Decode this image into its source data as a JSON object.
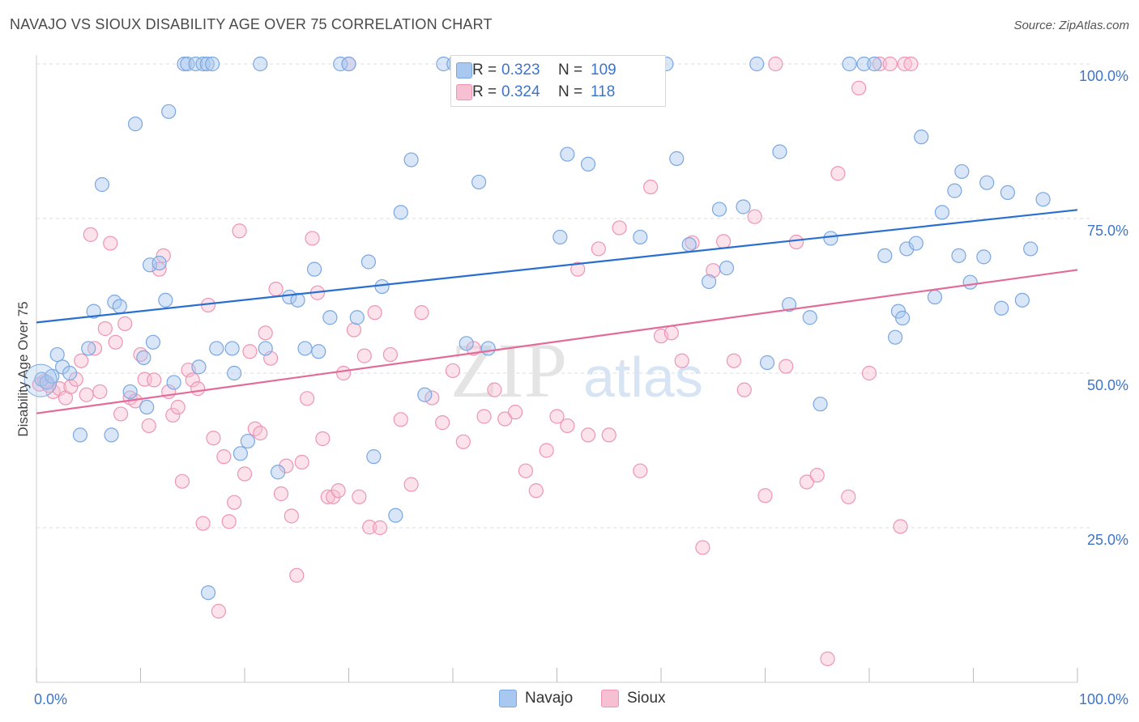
{
  "title": "NAVAJO VS SIOUX DISABILITY AGE OVER 75 CORRELATION CHART",
  "source": "Source: ZipAtlas.com",
  "watermark": {
    "zip": "ZIP",
    "atlas": "atlas"
  },
  "colors": {
    "navajo_fill": "#a9c8ef",
    "navajo_stroke": "#7ba7e0",
    "navajo_line": "#2a6fcf",
    "sioux_fill": "#f6bfd2",
    "sioux_stroke": "#ee95b4",
    "sioux_line": "#e26b98",
    "axis_label": "#3e74c9",
    "grid": "#dddddd"
  },
  "legend": {
    "navajo": {
      "r_label": "R =",
      "r_value": "0.323",
      "n_label": "N =",
      "n_value": "109"
    },
    "sioux": {
      "r_label": "R =",
      "r_value": "0.324",
      "n_label": "N =",
      "n_value": "118"
    }
  },
  "bottom_legend": {
    "navajo": "Navajo",
    "sioux": "Sioux"
  },
  "chart_data": {
    "type": "scatter",
    "title": "NAVAJO VS SIOUX DISABILITY AGE OVER 75 CORRELATION CHART",
    "xlabel": "",
    "ylabel": "Disability Age Over 75",
    "xlim": [
      0,
      100
    ],
    "ylim": [
      0,
      103
    ],
    "x_tick_labels": [
      "0.0%",
      "100.0%"
    ],
    "y_ticks": [
      25,
      50,
      75,
      100
    ],
    "y_tick_labels": [
      "25.0%",
      "50.0%",
      "75.0%",
      "100.0%"
    ],
    "grid": true,
    "legend_position": "top-center",
    "series": [
      {
        "name": "Navajo",
        "trend": {
          "start": [
            0,
            58.2
          ],
          "end": [
            100,
            76.4
          ]
        },
        "points": [
          [
            0.5,
            49
          ],
          [
            1.0,
            48.5
          ],
          [
            1.5,
            49.5
          ],
          [
            2.0,
            53
          ],
          [
            2.5,
            51
          ],
          [
            3.2,
            50
          ],
          [
            4.2,
            40
          ],
          [
            5.0,
            54
          ],
          [
            5.5,
            60
          ],
          [
            6.3,
            80.5
          ],
          [
            7.2,
            40
          ],
          [
            7.5,
            61.5
          ],
          [
            8.0,
            60.8
          ],
          [
            9.0,
            47
          ],
          [
            9.5,
            90.3
          ],
          [
            10.3,
            52.5
          ],
          [
            10.6,
            44.5
          ],
          [
            10.9,
            67.5
          ],
          [
            11.2,
            55
          ],
          [
            11.8,
            67.8
          ],
          [
            12.4,
            61.8
          ],
          [
            12.7,
            92.3
          ],
          [
            13.2,
            48.5
          ],
          [
            14.2,
            100
          ],
          [
            14.5,
            100
          ],
          [
            15.3,
            100
          ],
          [
            16.0,
            100
          ],
          [
            16.4,
            100
          ],
          [
            16.9,
            100
          ],
          [
            15.6,
            51
          ],
          [
            16.5,
            14.5
          ],
          [
            17.3,
            54
          ],
          [
            18.8,
            54
          ],
          [
            19.0,
            50
          ],
          [
            19.6,
            37
          ],
          [
            20.3,
            39
          ],
          [
            21.5,
            100
          ],
          [
            22.0,
            54
          ],
          [
            23.2,
            34
          ],
          [
            24.3,
            62.3
          ],
          [
            25.1,
            61.8
          ],
          [
            25.8,
            54
          ],
          [
            26.7,
            66.8
          ],
          [
            27.1,
            53.5
          ],
          [
            28.2,
            59
          ],
          [
            29.2,
            100
          ],
          [
            30.0,
            100
          ],
          [
            30.8,
            59
          ],
          [
            31.9,
            68
          ],
          [
            32.4,
            36.5
          ],
          [
            33.2,
            64
          ],
          [
            34.5,
            27
          ],
          [
            35.0,
            76
          ],
          [
            36.0,
            84.5
          ],
          [
            37.3,
            46.5
          ],
          [
            39.1,
            100
          ],
          [
            40.1,
            100
          ],
          [
            41.3,
            54.8
          ],
          [
            42.5,
            80.9
          ],
          [
            43.4,
            54
          ],
          [
            44.0,
            100
          ],
          [
            46.5,
            100
          ],
          [
            47.5,
            100
          ],
          [
            48.0,
            100
          ],
          [
            49.8,
            100
          ],
          [
            50.3,
            72
          ],
          [
            51.0,
            85.4
          ],
          [
            52.0,
            100
          ],
          [
            53.0,
            83.8
          ],
          [
            54.5,
            100
          ],
          [
            55.5,
            100
          ],
          [
            57.4,
            100
          ],
          [
            58.0,
            72
          ],
          [
            60.5,
            100
          ],
          [
            61.5,
            84.7
          ],
          [
            62.7,
            70.8
          ],
          [
            64.6,
            64.8
          ],
          [
            65.6,
            76.5
          ],
          [
            66.3,
            67
          ],
          [
            67.9,
            76.9
          ],
          [
            69.2,
            100
          ],
          [
            70.2,
            51.7
          ],
          [
            71.4,
            85.8
          ],
          [
            72.3,
            61.1
          ],
          [
            74.3,
            59
          ],
          [
            75.3,
            45
          ],
          [
            76.3,
            71.8
          ],
          [
            78.1,
            100
          ],
          [
            79.5,
            100
          ],
          [
            80.5,
            100
          ],
          [
            81.5,
            69
          ],
          [
            82.5,
            55.8
          ],
          [
            82.8,
            60
          ],
          [
            83.2,
            58.9
          ],
          [
            83.6,
            70.1
          ],
          [
            84.5,
            71
          ],
          [
            85.0,
            88.2
          ],
          [
            86.3,
            62.3
          ],
          [
            87.0,
            76
          ],
          [
            88.2,
            79.5
          ],
          [
            88.6,
            69
          ],
          [
            88.9,
            82.6
          ],
          [
            89.7,
            64.7
          ],
          [
            91.0,
            68.8
          ],
          [
            91.3,
            80.8
          ],
          [
            92.7,
            60.5
          ],
          [
            93.3,
            79.2
          ],
          [
            94.7,
            61.8
          ],
          [
            95.5,
            70.1
          ],
          [
            96.7,
            78.1
          ]
        ]
      },
      {
        "name": "Sioux",
        "trend": {
          "start": [
            0,
            43.5
          ],
          "end": [
            100,
            66.7
          ]
        },
        "points": [
          [
            0.3,
            48.2
          ],
          [
            0.8,
            48.7
          ],
          [
            1.2,
            48
          ],
          [
            1.6,
            47
          ],
          [
            2.2,
            47.5
          ],
          [
            2.8,
            46
          ],
          [
            3.3,
            47.8
          ],
          [
            3.8,
            49
          ],
          [
            4.3,
            52
          ],
          [
            4.8,
            46.5
          ],
          [
            5.2,
            72.4
          ],
          [
            5.6,
            54
          ],
          [
            6.1,
            47
          ],
          [
            6.6,
            57.2
          ],
          [
            7.1,
            71
          ],
          [
            7.6,
            55
          ],
          [
            8.1,
            43.4
          ],
          [
            8.5,
            58
          ],
          [
            9.0,
            46
          ],
          [
            9.5,
            45.5
          ],
          [
            10.0,
            53
          ],
          [
            10.4,
            49
          ],
          [
            10.8,
            41.5
          ],
          [
            11.3,
            48.9
          ],
          [
            11.8,
            66.8
          ],
          [
            12.2,
            69
          ],
          [
            12.7,
            47
          ],
          [
            13.1,
            43.2
          ],
          [
            13.6,
            44.5
          ],
          [
            14.0,
            32.5
          ],
          [
            14.6,
            50.5
          ],
          [
            15.0,
            48.9
          ],
          [
            15.5,
            47.5
          ],
          [
            16.0,
            25.7
          ],
          [
            16.5,
            61
          ],
          [
            17.0,
            39.5
          ],
          [
            17.5,
            11.5
          ],
          [
            18.0,
            36.5
          ],
          [
            18.5,
            26
          ],
          [
            19.0,
            29.1
          ],
          [
            19.5,
            73
          ],
          [
            20.0,
            33.7
          ],
          [
            20.5,
            53.5
          ],
          [
            21.0,
            41
          ],
          [
            21.5,
            40.3
          ],
          [
            22.0,
            56.5
          ],
          [
            22.5,
            52.4
          ],
          [
            23.0,
            63.6
          ],
          [
            23.5,
            30.5
          ],
          [
            24.0,
            35
          ],
          [
            24.5,
            26.9
          ],
          [
            25.0,
            17.3
          ],
          [
            25.5,
            35.6
          ],
          [
            26.0,
            45.9
          ],
          [
            26.5,
            71.8
          ],
          [
            27.0,
            63
          ],
          [
            27.5,
            39.4
          ],
          [
            28.0,
            30
          ],
          [
            28.5,
            30
          ],
          [
            29.0,
            31
          ],
          [
            29.5,
            50
          ],
          [
            30.0,
            100
          ],
          [
            30.5,
            57
          ],
          [
            31.0,
            30
          ],
          [
            31.5,
            52.8
          ],
          [
            32.0,
            25.1
          ],
          [
            32.5,
            59.8
          ],
          [
            33.0,
            25
          ],
          [
            34.0,
            53
          ],
          [
            35.0,
            42.5
          ],
          [
            36.0,
            32
          ],
          [
            37.0,
            59.8
          ],
          [
            38.0,
            46
          ],
          [
            39.0,
            42
          ],
          [
            40.0,
            50.4
          ],
          [
            41.0,
            38.9
          ],
          [
            42.0,
            54
          ],
          [
            43.0,
            43
          ],
          [
            44.0,
            47.3
          ],
          [
            45.0,
            42.6
          ],
          [
            46.0,
            43.7
          ],
          [
            47.0,
            34.2
          ],
          [
            48.0,
            31
          ],
          [
            49.0,
            37.5
          ],
          [
            50.0,
            43
          ],
          [
            51.0,
            41.5
          ],
          [
            52.0,
            66.8
          ],
          [
            53.0,
            40
          ],
          [
            54.0,
            70.1
          ],
          [
            55.0,
            40
          ],
          [
            56.0,
            73.5
          ],
          [
            57.0,
            100
          ],
          [
            58.0,
            34.2
          ],
          [
            59.0,
            80.1
          ],
          [
            60.0,
            56
          ],
          [
            61.0,
            56.5
          ],
          [
            62.0,
            52
          ],
          [
            63.0,
            71.1
          ],
          [
            64.0,
            21.8
          ],
          [
            65.0,
            66.6
          ],
          [
            66.0,
            71.3
          ],
          [
            67.0,
            52
          ],
          [
            68.0,
            47.3
          ],
          [
            69.0,
            75.3
          ],
          [
            70.0,
            30.2
          ],
          [
            71.0,
            100
          ],
          [
            72.0,
            51.1
          ],
          [
            73.0,
            71.2
          ],
          [
            74.0,
            32.4
          ],
          [
            75.0,
            33.5
          ],
          [
            76.0,
            3.8
          ],
          [
            77.0,
            82.3
          ],
          [
            78.0,
            30
          ],
          [
            79.0,
            96.1
          ],
          [
            80.0,
            50
          ],
          [
            81.0,
            100
          ],
          [
            82.0,
            100
          ],
          [
            83.0,
            25.2
          ],
          [
            83.4,
            100
          ],
          [
            84.0,
            100
          ]
        ]
      }
    ]
  }
}
